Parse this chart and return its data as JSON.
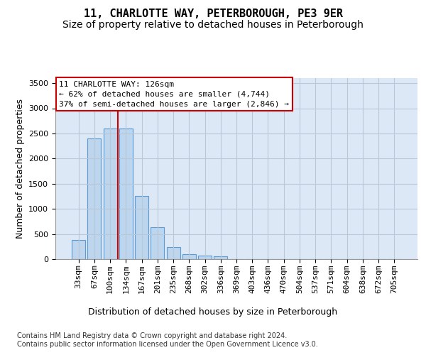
{
  "title": "11, CHARLOTTE WAY, PETERBOROUGH, PE3 9ER",
  "subtitle": "Size of property relative to detached houses in Peterborough",
  "xlabel": "Distribution of detached houses by size in Peterborough",
  "ylabel": "Number of detached properties",
  "footer_line1": "Contains HM Land Registry data © Crown copyright and database right 2024.",
  "footer_line2": "Contains public sector information licensed under the Open Government Licence v3.0.",
  "categories": [
    "33sqm",
    "67sqm",
    "100sqm",
    "134sqm",
    "167sqm",
    "201sqm",
    "235sqm",
    "268sqm",
    "302sqm",
    "336sqm",
    "369sqm",
    "403sqm",
    "436sqm",
    "470sqm",
    "504sqm",
    "537sqm",
    "571sqm",
    "604sqm",
    "638sqm",
    "672sqm",
    "705sqm"
  ],
  "values": [
    380,
    2400,
    2600,
    2600,
    1250,
    630,
    240,
    100,
    65,
    50,
    0,
    0,
    0,
    0,
    0,
    0,
    0,
    0,
    0,
    0,
    0
  ],
  "bar_color": "#bdd5ed",
  "bar_edge_color": "#5b9bd5",
  "red_line_x": 2.5,
  "red_line_color": "#cc0000",
  "annotation_text": "11 CHARLOTTE WAY: 126sqm\n← 62% of detached houses are smaller (4,744)\n37% of semi-detached houses are larger (2,846) →",
  "annotation_box_color": "#ffffff",
  "annotation_box_edge": "#cc0000",
  "ylim": [
    0,
    3600
  ],
  "yticks": [
    0,
    500,
    1000,
    1500,
    2000,
    2500,
    3000,
    3500
  ],
  "plot_bg_color": "#dce8f5",
  "background_color": "#ffffff",
  "grid_color": "#b8c8d8",
  "title_fontsize": 11,
  "subtitle_fontsize": 10,
  "ylabel_fontsize": 9,
  "tick_fontsize": 8,
  "annotation_fontsize": 8,
  "footer_fontsize": 7,
  "xlabel_fontsize": 9
}
